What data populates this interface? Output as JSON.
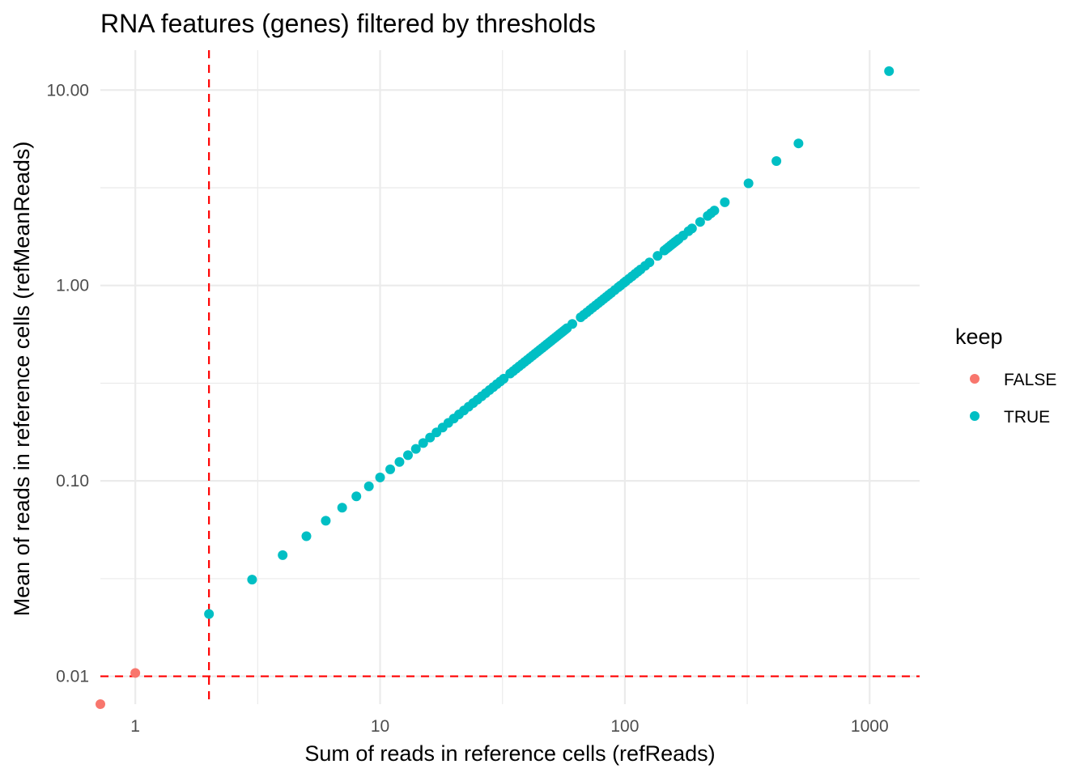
{
  "chart_data": {
    "type": "scatter",
    "title": "RNA features (genes) filtered by thresholds",
    "xlabel": "Sum of reads in reference cells (refReads)",
    "ylabel": "Mean of reads in reference cells (refMeanReads)",
    "x_scale": "log10",
    "y_scale": "log10",
    "xlim": [
      0.72,
      1600
    ],
    "ylim": [
      0.0072,
      16
    ],
    "x_ticks": [
      {
        "value": 1,
        "label": "1"
      },
      {
        "value": 10,
        "label": "10"
      },
      {
        "value": 100,
        "label": "100"
      },
      {
        "value": 1000,
        "label": "1000"
      }
    ],
    "y_ticks": [
      {
        "value": 0.01,
        "label": "0.01"
      },
      {
        "value": 0.1,
        "label": "0.10"
      },
      {
        "value": 1,
        "label": "1.00"
      },
      {
        "value": 10,
        "label": "10.00"
      }
    ],
    "x_minor_breaks": [
      3.162,
      31.62,
      316.2
    ],
    "y_minor_breaks": [
      0.0316,
      0.316,
      3.162
    ],
    "grid": true,
    "reference_lines": [
      {
        "axis": "x",
        "value": 2,
        "style": "dashed",
        "color": "#ff0000"
      },
      {
        "axis": "y",
        "value": 0.01,
        "style": "dashed",
        "color": "#ff0000"
      }
    ],
    "legend": {
      "title": "keep",
      "position": "right",
      "entries": [
        {
          "label": "FALSE",
          "color": "#f8766d"
        },
        {
          "label": "TRUE",
          "color": "#00bfc4"
        }
      ]
    },
    "series": [
      {
        "name": "FALSE",
        "color": "#f8766d",
        "points": [
          {
            "x": 0.72,
            "y": 0.0072
          },
          {
            "x": 1,
            "y": 0.0104
          }
        ]
      },
      {
        "name": "TRUE",
        "color": "#00bfc4",
        "mean_divisor": 96,
        "x": [
          2,
          3,
          4,
          5,
          6,
          7,
          8,
          9,
          10,
          11,
          12,
          13,
          14,
          15,
          16,
          17,
          18,
          19,
          20,
          21,
          22,
          23,
          24,
          25,
          26,
          27,
          28,
          29,
          30,
          31,
          32,
          34,
          35,
          36,
          37,
          38,
          39,
          40,
          41,
          42,
          43,
          44,
          45,
          46,
          47,
          48,
          49,
          50,
          51,
          52,
          53,
          54,
          55,
          56,
          57,
          58,
          61,
          66,
          68,
          70,
          72,
          74,
          76,
          78,
          80,
          82,
          84,
          86,
          88,
          91,
          94,
          96,
          99,
          101,
          104,
          107,
          110,
          113,
          116,
          121,
          126,
          136,
          145,
          148,
          151,
          154,
          157,
          160,
          163,
          166,
          173,
          182,
          188,
          203,
          218,
          225,
          232,
          256,
          320,
          416,
          512,
          1200
        ]
      }
    ]
  }
}
